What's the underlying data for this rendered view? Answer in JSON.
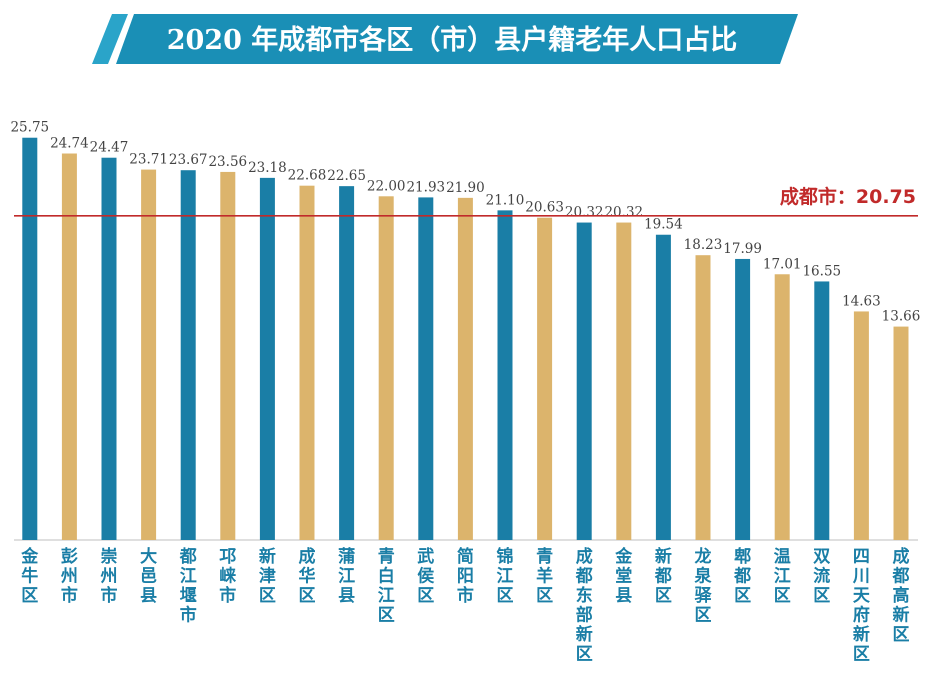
{
  "colors": {
    "title_bg": "#1a8fb6",
    "title_accent": "#2aa4c9",
    "bar_primary": "#1a7ea6",
    "bar_secondary": "#dcb46c",
    "reference_line": "#c12a2a",
    "category_text": "#1a7ea6"
  },
  "chart_data": {
    "type": "bar",
    "title": "2020 年成都市各区（市）县户籍老年人口占比",
    "xlabel": "",
    "ylabel": "",
    "ylim": [
      0,
      26.5
    ],
    "categories": [
      "金牛区",
      "彭州市",
      "崇州市",
      "大邑县",
      "都江堰市",
      "邛崃市",
      "新津区",
      "成华区",
      "蒲江县",
      "青白江区",
      "武侯区",
      "简阳市",
      "锦江区",
      "青羊区",
      "成都东部新区",
      "金堂县",
      "新都区",
      "龙泉驿区",
      "郫都区",
      "温江区",
      "双流区",
      "四川天府新区",
      "成都高新区"
    ],
    "values": [
      25.75,
      24.74,
      24.47,
      23.71,
      23.67,
      23.56,
      23.18,
      22.68,
      22.65,
      22.0,
      21.93,
      21.9,
      21.1,
      20.63,
      20.32,
      20.32,
      19.54,
      18.23,
      17.99,
      17.01,
      16.55,
      14.63,
      13.66
    ],
    "value_labels": [
      "25.75",
      "24.74",
      "24.47",
      "23.71",
      "23.67",
      "23.56",
      "23.18",
      "22.68",
      "22.65",
      "22.00",
      "21.93",
      "21.90",
      "21.10",
      "20.63",
      "20.32",
      "20.32",
      "19.54",
      "18.23",
      "17.99",
      "17.01",
      "16.55",
      "14.63",
      "13.66"
    ],
    "bar_color_keys": [
      "primary",
      "secondary",
      "primary",
      "secondary",
      "primary",
      "secondary",
      "primary",
      "secondary",
      "primary",
      "secondary",
      "primary",
      "secondary",
      "primary",
      "secondary",
      "primary",
      "secondary",
      "primary",
      "secondary",
      "primary",
      "secondary",
      "primary",
      "secondary",
      "secondary"
    ],
    "reference_line": {
      "value": 20.75,
      "label": "成都市：20.75"
    },
    "grid": false,
    "legend": "none"
  }
}
